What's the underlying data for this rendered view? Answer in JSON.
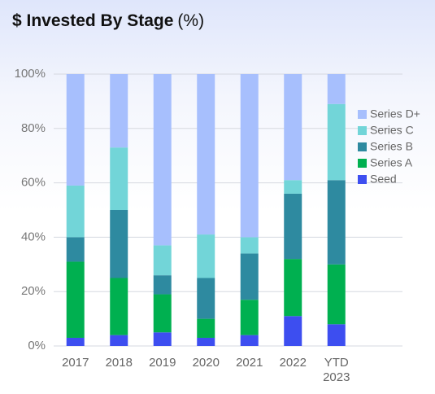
{
  "chart_data": {
    "type": "bar",
    "stacked": true,
    "title": "$ Invested By Stage",
    "title_suffix": "(%)",
    "categories": [
      "2017",
      "2018",
      "2019",
      "2020",
      "2021",
      "2022",
      "YTD 2023"
    ],
    "series": [
      {
        "name": "Seed",
        "color": "#3d4ef0",
        "values": [
          3,
          4,
          5,
          3,
          4,
          11,
          8
        ]
      },
      {
        "name": "Series A",
        "color": "#00b050",
        "values": [
          28,
          21,
          14,
          7,
          13,
          21,
          22
        ]
      },
      {
        "name": "Series B",
        "color": "#2e8aa0",
        "values": [
          9,
          25,
          7,
          15,
          17,
          24,
          31
        ]
      },
      {
        "name": "Series C",
        "color": "#72d5d8",
        "values": [
          19,
          23,
          11,
          16,
          6,
          5,
          28
        ]
      },
      {
        "name": "Series D+",
        "color": "#a7bffd",
        "values": [
          41,
          27,
          63,
          59,
          60,
          39,
          11
        ]
      }
    ],
    "ylim": [
      0,
      100
    ],
    "yticks": [
      {
        "value": 0,
        "label": "0%"
      },
      {
        "value": 20,
        "label": "20%"
      },
      {
        "value": 40,
        "label": "40%"
      },
      {
        "value": 60,
        "label": "60%"
      },
      {
        "value": 80,
        "label": "80%"
      },
      {
        "value": 100,
        "label": "100%"
      }
    ],
    "grid": true,
    "legend": "right"
  }
}
